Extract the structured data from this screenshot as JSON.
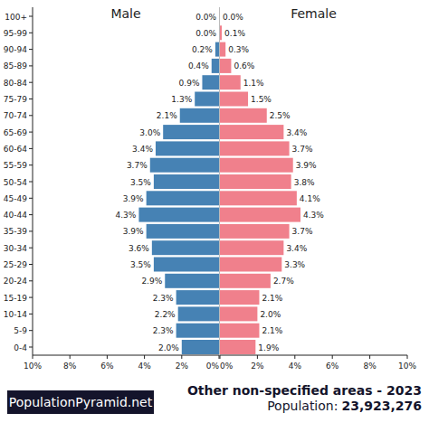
{
  "chart_data": [
    {
      "type": "bar",
      "orientation": "horizontal",
      "title": "Male",
      "color": "#4682b4",
      "data_labels": true,
      "categories": [
        "0-4",
        "5-9",
        "10-14",
        "15-19",
        "20-24",
        "25-29",
        "30-34",
        "35-39",
        "40-44",
        "45-49",
        "50-54",
        "55-59",
        "60-64",
        "65-69",
        "70-74",
        "75-79",
        "80-84",
        "85-89",
        "90-94",
        "95-99",
        "100+"
      ],
      "values": [
        2.0,
        2.3,
        2.2,
        2.3,
        2.9,
        3.5,
        3.6,
        3.9,
        4.3,
        3.9,
        3.5,
        3.7,
        3.4,
        3.0,
        2.1,
        1.3,
        0.9,
        0.4,
        0.2,
        0.0,
        0.0
      ],
      "value_labels": [
        "2.0%",
        "2.3%",
        "2.2%",
        "2.3%",
        "2.9%",
        "3.5%",
        "3.6%",
        "3.9%",
        "4.3%",
        "3.9%",
        "3.5%",
        "3.7%",
        "3.4%",
        "3.0%",
        "2.1%",
        "1.3%",
        "0.9%",
        "0.4%",
        "0.2%",
        "0.0%",
        "0.0%"
      ],
      "xlim": [
        10,
        0
      ],
      "xticks": [
        {
          "value": 10,
          "label": "10%"
        },
        {
          "value": 8,
          "label": "8%"
        },
        {
          "value": 6,
          "label": "6%"
        },
        {
          "value": 4,
          "label": "4%"
        },
        {
          "value": 2,
          "label": "2%"
        },
        {
          "value": 0,
          "label": "0%"
        }
      ]
    },
    {
      "type": "bar",
      "orientation": "horizontal",
      "title": "Female",
      "color": "#f0808c",
      "data_labels": true,
      "tick_labels": "x",
      "categories": [
        "0-4",
        "5-9",
        "10-14",
        "15-19",
        "20-24",
        "25-29",
        "30-34",
        "35-39",
        "40-44",
        "45-49",
        "50-54",
        "55-59",
        "60-64",
        "65-69",
        "70-74",
        "75-79",
        "80-84",
        "85-89",
        "90-94",
        "95-99",
        "100+"
      ],
      "values": [
        1.9,
        2.1,
        2.0,
        2.1,
        2.7,
        3.3,
        3.4,
        3.7,
        4.3,
        4.1,
        3.8,
        3.9,
        3.7,
        3.4,
        2.5,
        1.5,
        1.1,
        0.6,
        0.3,
        0.1,
        0.0
      ],
      "value_labels": [
        "1.9%",
        "2.1%",
        "2.0%",
        "2.1%",
        "2.7%",
        "3.3%",
        "3.4%",
        "3.7%",
        "4.3%",
        "4.1%",
        "3.8%",
        "3.9%",
        "3.7%",
        "3.4%",
        "2.5%",
        "1.5%",
        "1.1%",
        "0.6%",
        "0.3%",
        "0.1%",
        "0.0%"
      ],
      "xlim": [
        0,
        10
      ],
      "xticks": [
        {
          "value": 0,
          "label": "0%"
        },
        {
          "value": 2,
          "label": "2%"
        },
        {
          "value": 4,
          "label": "4%"
        },
        {
          "value": 6,
          "label": "6%"
        },
        {
          "value": 8,
          "label": "8%"
        },
        {
          "value": 10,
          "label": "10%"
        }
      ]
    }
  ],
  "footer": {
    "site": "PopulationPyramid.net",
    "title": "Other non-specified areas - 2023",
    "population_label": "Population:",
    "population": "23,923,276"
  }
}
